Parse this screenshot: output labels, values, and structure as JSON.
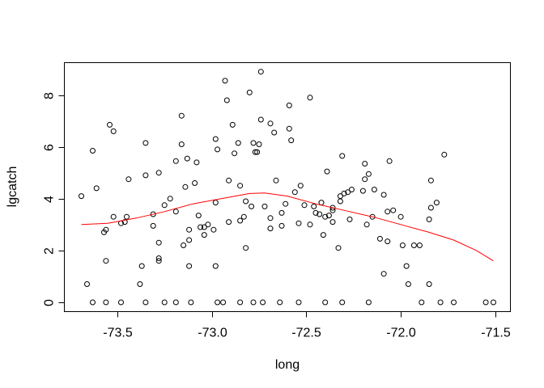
{
  "chart_data": {
    "type": "scatter",
    "title": "",
    "xlabel": "long",
    "ylabel": "lgcatch",
    "xlim": [
      -73.78,
      -71.42
    ],
    "ylim": [
      -0.36,
      9.25
    ],
    "xticks": [
      -73.5,
      -73.0,
      -72.5,
      -72.0,
      -71.5
    ],
    "xtick_labels": [
      "-73.5",
      "-73.0",
      "-72.5",
      "-72.0",
      "-71.5"
    ],
    "yticks": [
      0,
      2,
      4,
      6,
      8
    ],
    "ytick_labels": [
      "0",
      "2",
      "4",
      "6",
      "8"
    ],
    "grid": false,
    "point_color": "#000000",
    "smooth_color": "#ff0000",
    "points": [
      [
        -73.69,
        4.1
      ],
      [
        -73.66,
        0.7
      ],
      [
        -73.63,
        5.85
      ],
      [
        -73.63,
        0.0
      ],
      [
        -73.61,
        4.4
      ],
      [
        -73.57,
        2.7
      ],
      [
        -73.56,
        2.8
      ],
      [
        -73.56,
        1.6
      ],
      [
        -73.56,
        0.0
      ],
      [
        -73.54,
        6.85
      ],
      [
        -73.52,
        6.6
      ],
      [
        -73.52,
        3.3
      ],
      [
        -73.48,
        3.05
      ],
      [
        -73.48,
        0.0
      ],
      [
        -73.46,
        3.1
      ],
      [
        -73.45,
        3.3
      ],
      [
        -73.44,
        4.75
      ],
      [
        -73.38,
        0.7
      ],
      [
        -73.37,
        1.4
      ],
      [
        -73.35,
        6.15
      ],
      [
        -73.35,
        4.9
      ],
      [
        -73.35,
        0.0
      ],
      [
        -73.31,
        2.95
      ],
      [
        -73.31,
        3.4
      ],
      [
        -73.28,
        5.0
      ],
      [
        -73.28,
        2.3
      ],
      [
        -73.28,
        1.7
      ],
      [
        -73.28,
        1.6
      ],
      [
        -73.25,
        3.75
      ],
      [
        -73.25,
        0.0
      ],
      [
        -73.22,
        4.0
      ],
      [
        -73.19,
        5.45
      ],
      [
        -73.19,
        3.5
      ],
      [
        -73.19,
        0.0
      ],
      [
        -73.16,
        7.2
      ],
      [
        -73.16,
        6.1
      ],
      [
        -73.15,
        2.2
      ],
      [
        -73.14,
        4.45
      ],
      [
        -73.13,
        5.55
      ],
      [
        -73.12,
        2.8
      ],
      [
        -73.12,
        2.4
      ],
      [
        -73.12,
        1.4
      ],
      [
        -73.11,
        0.0
      ],
      [
        -73.09,
        4.6
      ],
      [
        -73.08,
        5.4
      ],
      [
        -73.07,
        3.35
      ],
      [
        -73.06,
        2.9
      ],
      [
        -73.04,
        2.9
      ],
      [
        -73.04,
        2.6
      ],
      [
        -73.02,
        3.0
      ],
      [
        -72.99,
        2.8
      ],
      [
        -72.98,
        6.3
      ],
      [
        -72.98,
        3.85
      ],
      [
        -72.98,
        1.4
      ],
      [
        -72.97,
        5.9
      ],
      [
        -72.97,
        0.0
      ],
      [
        -72.94,
        0.0
      ],
      [
        -72.93,
        8.55
      ],
      [
        -72.92,
        7.8
      ],
      [
        -72.91,
        4.7
      ],
      [
        -72.91,
        3.1
      ],
      [
        -72.89,
        6.85
      ],
      [
        -72.88,
        5.75
      ],
      [
        -72.86,
        6.15
      ],
      [
        -72.85,
        4.5
      ],
      [
        -72.85,
        3.15
      ],
      [
        -72.85,
        0.0
      ],
      [
        -72.83,
        3.3
      ],
      [
        -72.82,
        3.9
      ],
      [
        -72.82,
        2.1
      ],
      [
        -72.8,
        8.1
      ],
      [
        -72.79,
        3.7
      ],
      [
        -72.78,
        6.15
      ],
      [
        -72.78,
        0.0
      ],
      [
        -72.77,
        5.8
      ],
      [
        -72.76,
        5.8
      ],
      [
        -72.75,
        6.1
      ],
      [
        -72.74,
        8.9
      ],
      [
        -72.74,
        7.05
      ],
      [
        -72.73,
        0.0
      ],
      [
        -72.72,
        3.7
      ],
      [
        -72.69,
        6.9
      ],
      [
        -72.69,
        3.25
      ],
      [
        -72.69,
        2.85
      ],
      [
        -72.67,
        6.55
      ],
      [
        -72.66,
        4.7
      ],
      [
        -72.64,
        0.0
      ],
      [
        -72.63,
        3.45
      ],
      [
        -72.63,
        2.95
      ],
      [
        -72.61,
        3.8
      ],
      [
        -72.59,
        6.7
      ],
      [
        -72.59,
        7.6
      ],
      [
        -72.58,
        6.25
      ],
      [
        -72.56,
        4.25
      ],
      [
        -72.54,
        3.05
      ],
      [
        -72.54,
        0.0
      ],
      [
        -72.53,
        4.5
      ],
      [
        -72.51,
        3.75
      ],
      [
        -72.48,
        7.9
      ],
      [
        -72.48,
        3.0
      ],
      [
        -72.46,
        3.7
      ],
      [
        -72.45,
        3.45
      ],
      [
        -72.43,
        3.4
      ],
      [
        -72.42,
        3.85
      ],
      [
        -72.41,
        2.6
      ],
      [
        -72.4,
        3.3
      ],
      [
        -72.4,
        0.0
      ],
      [
        -72.39,
        5.05
      ],
      [
        -72.38,
        3.35
      ],
      [
        -72.36,
        3.1
      ],
      [
        -72.36,
        3.55
      ],
      [
        -72.36,
        3.65
      ],
      [
        -72.33,
        2.1
      ],
      [
        -72.32,
        4.1
      ],
      [
        -72.32,
        3.9
      ],
      [
        -72.31,
        5.65
      ],
      [
        -72.31,
        0.0
      ],
      [
        -72.3,
        4.2
      ],
      [
        -72.28,
        4.25
      ],
      [
        -72.27,
        3.2
      ],
      [
        -72.26,
        4.35
      ],
      [
        -72.2,
        4.3
      ],
      [
        -72.19,
        5.35
      ],
      [
        -72.19,
        4.75
      ],
      [
        -72.18,
        3.0
      ],
      [
        -72.17,
        4.95
      ],
      [
        -72.17,
        0.0
      ],
      [
        -72.15,
        3.3
      ],
      [
        -72.14,
        4.35
      ],
      [
        -72.11,
        2.45
      ],
      [
        -72.09,
        4.15
      ],
      [
        -72.09,
        1.1
      ],
      [
        -72.07,
        3.5
      ],
      [
        -72.07,
        2.35
      ],
      [
        -72.06,
        5.45
      ],
      [
        -72.04,
        3.55
      ],
      [
        -72.0,
        3.3
      ],
      [
        -71.99,
        2.2
      ],
      [
        -71.97,
        1.4
      ],
      [
        -71.96,
        0.7
      ],
      [
        -71.93,
        2.2
      ],
      [
        -71.9,
        2.2
      ],
      [
        -71.89,
        0.0
      ],
      [
        -71.85,
        3.2
      ],
      [
        -71.85,
        0.7
      ],
      [
        -71.84,
        4.7
      ],
      [
        -71.84,
        3.65
      ],
      [
        -71.81,
        3.85
      ],
      [
        -71.79,
        0.0
      ],
      [
        -71.77,
        5.7
      ],
      [
        -71.72,
        0.0
      ],
      [
        -71.55,
        0.0
      ],
      [
        -71.51,
        0.0
      ]
    ],
    "smooth_line": [
      [
        -73.69,
        3.0
      ],
      [
        -73.55,
        3.05
      ],
      [
        -73.4,
        3.25
      ],
      [
        -73.25,
        3.5
      ],
      [
        -73.1,
        3.8
      ],
      [
        -72.95,
        4.0
      ],
      [
        -72.8,
        4.2
      ],
      [
        -72.72,
        4.22
      ],
      [
        -72.6,
        4.1
      ],
      [
        -72.45,
        3.8
      ],
      [
        -72.3,
        3.55
      ],
      [
        -72.15,
        3.3
      ],
      [
        -72.0,
        3.0
      ],
      [
        -71.85,
        2.7
      ],
      [
        -71.72,
        2.4
      ],
      [
        -71.6,
        2.0
      ],
      [
        -71.51,
        1.6
      ]
    ]
  }
}
